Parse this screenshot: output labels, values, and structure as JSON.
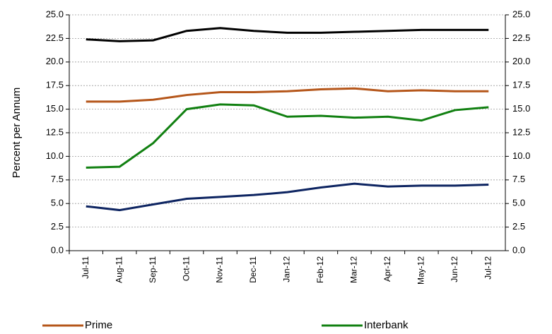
{
  "chart_data": {
    "type": "line",
    "y_label": "Percent per Annum",
    "categories": [
      "Jul-11",
      "Aug-11",
      "Sep-11",
      "Oct-11",
      "Nov-11",
      "Dec-11",
      "Jan-12",
      "Feb-12",
      "Mar-12",
      "Apr-12",
      "May-12",
      "Jun-12",
      "Jul-12"
    ],
    "series": [
      {
        "color": "#000000",
        "values": [
          22.4,
          22.2,
          22.3,
          23.3,
          23.6,
          23.3,
          23.1,
          23.1,
          23.2,
          23.3,
          23.4,
          23.4,
          23.4
        ]
      },
      {
        "name": "Prime",
        "color": "#b5561a",
        "values": [
          15.8,
          15.8,
          16.0,
          16.5,
          16.8,
          16.8,
          16.9,
          17.1,
          17.2,
          16.9,
          17.0,
          16.9,
          16.9
        ]
      },
      {
        "name": "Interbank",
        "color": "#118011",
        "values": [
          8.8,
          8.9,
          11.4,
          15.0,
          15.5,
          15.4,
          14.2,
          14.3,
          14.1,
          14.2,
          13.8,
          14.9,
          15.2
        ]
      },
      {
        "color": "#0d2461",
        "values": [
          4.7,
          4.3,
          4.9,
          5.5,
          5.7,
          5.9,
          6.2,
          6.7,
          7.1,
          6.8,
          6.9,
          6.9,
          7.0
        ]
      }
    ],
    "ylim": [
      0,
      25
    ],
    "yticks": [
      {
        "value": 0,
        "label": "0.0"
      },
      {
        "value": 2.5,
        "label": "2.5"
      },
      {
        "value": 5,
        "label": "5.0"
      },
      {
        "value": 7.5,
        "label": "7.5"
      },
      {
        "value": 10,
        "label": "10.0"
      },
      {
        "value": 12.5,
        "label": "12.5"
      },
      {
        "value": 15,
        "label": "15.0"
      },
      {
        "value": 17.5,
        "label": "17.5"
      },
      {
        "value": 20,
        "label": "20.0"
      },
      {
        "value": 22.5,
        "label": "22.5"
      },
      {
        "value": 25,
        "label": "25.0"
      }
    ],
    "y2lim": [
      0,
      25
    ],
    "y2ticks": [
      {
        "value": 0,
        "label": "0.0"
      },
      {
        "value": 2.5,
        "label": "2.5"
      },
      {
        "value": 5,
        "label": "5.0"
      },
      {
        "value": 7.5,
        "label": "7.5"
      },
      {
        "value": 10,
        "label": "10.0"
      },
      {
        "value": 12.5,
        "label": "12.5"
      },
      {
        "value": 15,
        "label": "15.0"
      },
      {
        "value": 17.5,
        "label": "17.5"
      },
      {
        "value": 20,
        "label": "20.0"
      },
      {
        "value": 22.5,
        "label": "22.5"
      },
      {
        "value": 25,
        "label": "25.0"
      }
    ],
    "grid": true
  }
}
